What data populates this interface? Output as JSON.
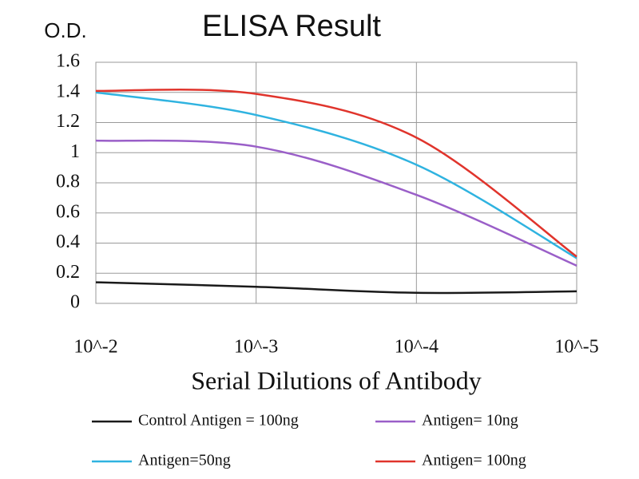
{
  "chart_data": {
    "type": "line",
    "title": "ELISA Result",
    "y_label": "O.D.",
    "x_label": "Serial Dilutions of Antibody",
    "categories": [
      "10^-2",
      "10^-3",
      "10^-4",
      "10^-5"
    ],
    "ylim": [
      0,
      1.6
    ],
    "yticks": [
      0,
      0.2,
      0.4,
      0.6,
      0.8,
      1,
      1.2,
      1.4,
      1.6
    ],
    "grid": true,
    "legend": "bottom",
    "series": [
      {
        "name": "Control Antigen = 100ng",
        "color": "#1a1a1a",
        "values": [
          0.14,
          0.11,
          0.07,
          0.08
        ]
      },
      {
        "name": "Antigen= 10ng",
        "color": "#9a5fc8",
        "values": [
          1.08,
          1.04,
          0.72,
          0.25
        ]
      },
      {
        "name": "Antigen=50ng",
        "color": "#2fb3e0",
        "values": [
          1.4,
          1.25,
          0.92,
          0.3
        ]
      },
      {
        "name": "Antigen= 100ng",
        "color": "#e0342c",
        "values": [
          1.41,
          1.39,
          1.1,
          0.31
        ]
      }
    ]
  }
}
